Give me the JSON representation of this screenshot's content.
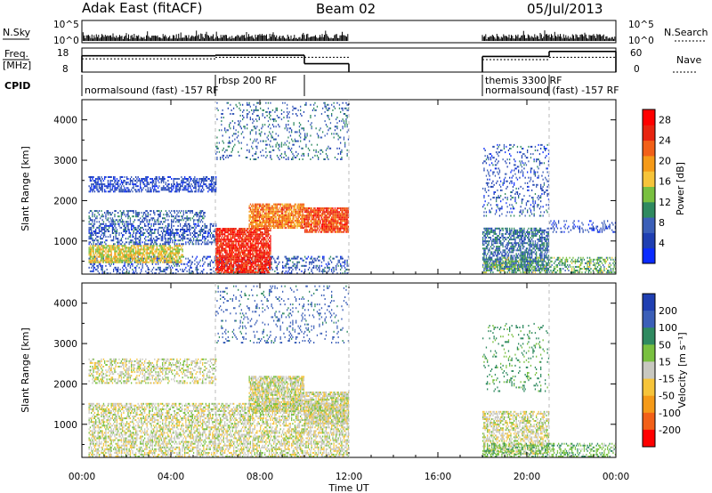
{
  "header": {
    "radar": "Adak East (fitACF)",
    "beam": "Beam 02",
    "date": "05/Jul/2013"
  },
  "colors": {
    "power_scale": [
      "#0a2bff",
      "#1f3fb2",
      "#3b5fb8",
      "#2f8a60",
      "#79c040",
      "#f6c43a",
      "#f59a18",
      "#f26018",
      "#e82410",
      "#ff0000"
    ],
    "velocity_scale": [
      "#ff0000",
      "#f26018",
      "#f59a18",
      "#f6c43a",
      "#c8c8c0",
      "#79c040",
      "#2f8a60",
      "#3b5fb8",
      "#1f3fb2"
    ],
    "ground_scatter": "#c8c8c0"
  },
  "chart_data": [
    {
      "type": "line",
      "name": "noise",
      "left_label": "N.Sky",
      "right_label": "N.Search",
      "left_ticks": [
        "10^5",
        "10^0"
      ],
      "right_ticks": [
        "10^5",
        "10^0"
      ],
      "segments": [
        [
          0,
          12
        ],
        [
          18,
          24
        ]
      ]
    },
    {
      "type": "line",
      "name": "frequency-nave",
      "left_label": [
        "Freq.",
        "[MHz]"
      ],
      "right_label": "Nave",
      "left_ticks": [
        18,
        8
      ],
      "right_ticks": [
        60,
        0
      ],
      "freq_ylim": [
        8,
        18
      ],
      "nave_ylim": [
        0,
        60
      ],
      "freq_steps": [
        {
          "from": 0,
          "to": 6,
          "value": 14.8
        },
        {
          "from": 6,
          "to": 10,
          "value": 15.0
        },
        {
          "from": 10,
          "to": 12,
          "value": 11.5
        },
        {
          "from": 18,
          "to": 21,
          "value": 14.5
        },
        {
          "from": 21,
          "to": 24,
          "value": 16.6
        }
      ],
      "nave_steps": [
        {
          "from": 0,
          "to": 6,
          "value": 33
        },
        {
          "from": 6,
          "to": 10,
          "value": 37
        },
        {
          "from": 10,
          "to": 12,
          "value": 37
        },
        {
          "from": 18,
          "to": 21,
          "value": 31
        },
        {
          "from": 21,
          "to": 24,
          "value": 37
        }
      ]
    },
    {
      "type": "table",
      "name": "cpid",
      "label": "CPID",
      "entries": [
        {
          "start": 0,
          "text": "normalsound (fast) -157 RF",
          "row": 1
        },
        {
          "start": 6,
          "text": "rbsp 200 RF",
          "row": 0
        },
        {
          "start": 18,
          "text": "themis 3300 RF",
          "row": 0
        },
        {
          "start": 18,
          "text": "normalsound (fast) -157 RF",
          "row": 1
        }
      ],
      "changes": [
        6,
        10,
        18,
        21
      ]
    },
    {
      "type": "heatmap",
      "name": "power",
      "ylabel": "Slant Range [km]",
      "yticks": [
        1000,
        2000,
        3000,
        4000
      ],
      "ylim": [
        180,
        4500
      ],
      "colorbar_label": "Power [dB]",
      "colorbar_ticks": [
        4,
        8,
        12,
        16,
        20,
        24,
        28
      ],
      "colorbar_range": [
        0,
        30
      ],
      "bands": [
        {
          "x": [
            0.3,
            12.0
          ],
          "r": [
            180,
            600
          ],
          "v": 6,
          "d": 0.3
        },
        {
          "x": [
            0.3,
            4.5
          ],
          "r": [
            450,
            900
          ],
          "v": 16,
          "d": 0.75
        },
        {
          "x": [
            0.3,
            6.0
          ],
          "r": [
            900,
            1400
          ],
          "v": 6,
          "d": 0.45
        },
        {
          "x": [
            0.3,
            5.5
          ],
          "r": [
            1450,
            1750
          ],
          "v": 7,
          "d": 0.45
        },
        {
          "x": [
            0.3,
            6.0
          ],
          "r": [
            2200,
            2600
          ],
          "v": 5,
          "d": 0.55
        },
        {
          "x": [
            6.0,
            8.5
          ],
          "r": [
            200,
            1300
          ],
          "v": 26,
          "d": 0.85
        },
        {
          "x": [
            7.5,
            10.0
          ],
          "r": [
            1300,
            1900
          ],
          "v": 21,
          "d": 0.85
        },
        {
          "x": [
            10.0,
            12.0
          ],
          "r": [
            1200,
            1800
          ],
          "v": 24,
          "d": 0.85
        },
        {
          "x": [
            6.0,
            12.0
          ],
          "r": [
            3000,
            4400
          ],
          "v": 8,
          "d": 0.15
        },
        {
          "x": [
            18.0,
            21.0
          ],
          "r": [
            250,
            1300
          ],
          "v": 8,
          "d": 0.6
        },
        {
          "x": [
            18.0,
            21.0
          ],
          "r": [
            1600,
            3400
          ],
          "v": 6,
          "d": 0.18
        },
        {
          "x": [
            18.0,
            24.0
          ],
          "r": [
            200,
            600
          ],
          "v": 12,
          "d": 0.45
        },
        {
          "x": [
            21.0,
            24.0
          ],
          "r": [
            1200,
            1500
          ],
          "v": 5,
          "d": 0.25
        }
      ]
    },
    {
      "type": "heatmap",
      "name": "velocity",
      "ylabel": "Slant Range [km]",
      "yticks": [
        1000,
        2000,
        3000,
        4000
      ],
      "ylim": [
        180,
        4500
      ],
      "colorbar_label": "Velocity [m s⁻¹]",
      "colorbar_ticks": [
        200,
        100,
        50,
        15,
        -15,
        -50,
        -100,
        -200
      ],
      "bands": [
        {
          "x": [
            0.3,
            12.0
          ],
          "r": [
            180,
            1500
          ],
          "v": 0,
          "d": 0.55
        },
        {
          "x": [
            0.3,
            6.0
          ],
          "r": [
            2000,
            2600
          ],
          "v": 0,
          "d": 0.45
        },
        {
          "x": [
            7.5,
            10.0
          ],
          "r": [
            1300,
            2200
          ],
          "v": 0,
          "d": 0.8
        },
        {
          "x": [
            10.0,
            12.0
          ],
          "r": [
            1000,
            1800
          ],
          "v": 0,
          "d": 0.8
        },
        {
          "x": [
            6.0,
            12.0
          ],
          "r": [
            3000,
            4400
          ],
          "v": 120,
          "d": 0.12
        },
        {
          "x": [
            18.0,
            21.0
          ],
          "r": [
            250,
            1300
          ],
          "v": 0,
          "d": 0.55
        },
        {
          "x": [
            18.0,
            21.0
          ],
          "r": [
            1800,
            3500
          ],
          "v": 60,
          "d": 0.12
        },
        {
          "x": [
            18.0,
            24.0
          ],
          "r": [
            180,
            500
          ],
          "v": 40,
          "d": 0.4
        }
      ],
      "xlabel": "Time UT",
      "xticks": [
        "00:00",
        "04:00",
        "08:00",
        "12:00",
        "16:00",
        "20:00",
        "00:00"
      ],
      "xlim": [
        0,
        24
      ]
    }
  ]
}
